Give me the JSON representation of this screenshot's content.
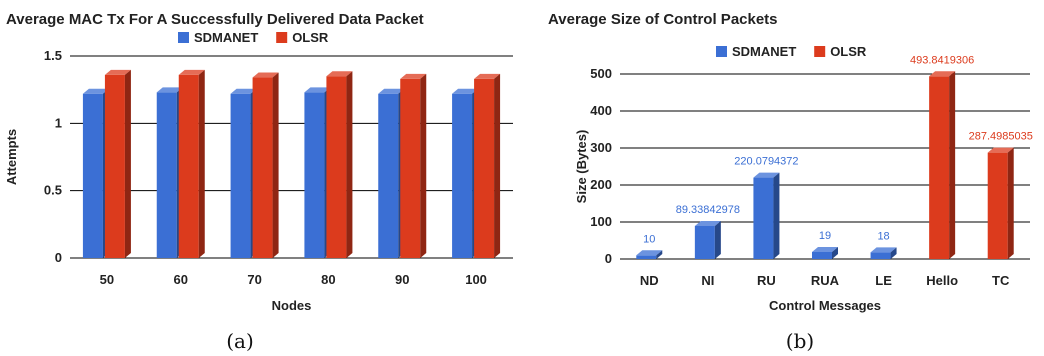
{
  "colors": {
    "sdmanet": "#3b6fd4",
    "olsr": "#dc3b1d",
    "grid": "#000000"
  },
  "chart_data": [
    {
      "type": "bar",
      "title": "Average MAC Tx For A Successfully Delivered Data Packet",
      "xlabel": "Nodes",
      "ylabel": "Attempts",
      "ylim": [
        0,
        1.5
      ],
      "yticks": [
        "0",
        "0.5",
        "1",
        "1.5"
      ],
      "categories": [
        "50",
        "60",
        "70",
        "80",
        "90",
        "100"
      ],
      "legend_position": "top",
      "series": [
        {
          "name": "SDMANET",
          "color": "#3b6fd4",
          "values": [
            1.22,
            1.23,
            1.22,
            1.23,
            1.22,
            1.22
          ]
        },
        {
          "name": "OLSR",
          "color": "#dc3b1d",
          "values": [
            1.36,
            1.36,
            1.34,
            1.35,
            1.33,
            1.33
          ]
        }
      ],
      "caption": "(a)"
    },
    {
      "type": "bar",
      "title": "Average Size of Control Packets",
      "xlabel": "Control Messages",
      "ylabel": "Size (Bytes)",
      "ylim": [
        0,
        500
      ],
      "yticks": [
        "0",
        "100",
        "200",
        "300",
        "400",
        "500"
      ],
      "categories": [
        "ND",
        "NI",
        "RU",
        "RUA",
        "LE",
        "Hello",
        "TC"
      ],
      "legend_position": "top",
      "series": [
        {
          "name": "SDMANET",
          "color": "#3b6fd4",
          "values": [
            10,
            89.33842978,
            220.0794372,
            19,
            18,
            null,
            null
          ],
          "labels": [
            "10",
            "89.33842978",
            "220.0794372",
            "19",
            "18",
            "",
            ""
          ]
        },
        {
          "name": "OLSR",
          "color": "#dc3b1d",
          "values": [
            null,
            null,
            null,
            null,
            null,
            493.8419306,
            287.4985035
          ],
          "labels": [
            "",
            "",
            "",
            "",
            "",
            "493.8419306",
            "287.4985035"
          ]
        }
      ],
      "caption": "(b)"
    }
  ]
}
